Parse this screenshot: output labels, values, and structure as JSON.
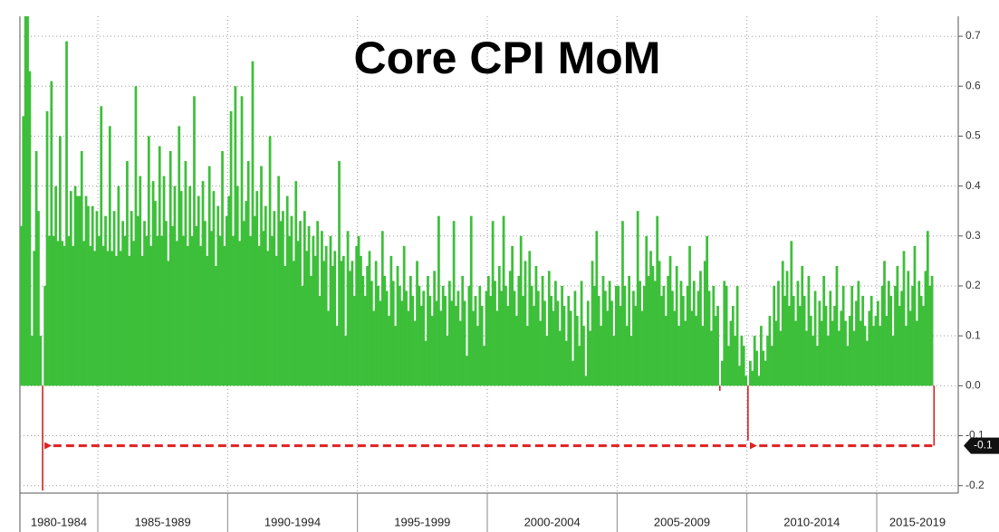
{
  "chart_data": {
    "type": "bar",
    "title": "Core CPI MoM",
    "color": "#3dbf3a",
    "negative_color": "#d42020",
    "annotation_color": "#e02020",
    "ylim": [
      -0.215,
      0.74
    ],
    "yticks": [
      0.7,
      0.6,
      0.5,
      0.4,
      0.3,
      0.2,
      0.1,
      {
        "value": 0,
        "label": "0.0"
      },
      -0.1,
      -0.2
    ],
    "xlim": [
      1982,
      2018.14
    ],
    "xticks": [
      1985,
      1990,
      1995,
      2000,
      2005,
      2010,
      2015
    ],
    "grid": true,
    "last_label": {
      "value": -0.12,
      "label": "-0.1"
    },
    "groups": [
      {
        "label": "1980-1984",
        "values": [
          0.32,
          0.54,
          0.74,
          0.74,
          0.63,
          0.1,
          0.27,
          0.47,
          0.35,
          0.1,
          -0.21,
          0.2,
          0.55,
          0.3,
          0.61,
          0.3,
          0.4,
          0.29,
          0.5,
          0.29,
          0.28,
          0.69,
          0.3,
          0.39,
          0.28,
          0.4,
          0.38,
          0.38,
          0.47,
          0.29,
          0.38,
          0.36,
          0.28,
          0.36,
          0.27,
          0.35
        ]
      },
      {
        "label": "1985-1989",
        "values": [
          0.3,
          0.56,
          0.28,
          0.34,
          0.27,
          0.52,
          0.27,
          0.35,
          0.26,
          0.4,
          0.27,
          0.33,
          0.3,
          0.45,
          0.26,
          0.35,
          0.29,
          0.6,
          0.34,
          0.42,
          0.26,
          0.33,
          0.3,
          0.5,
          0.28,
          0.41,
          0.37,
          0.3,
          0.48,
          0.3,
          0.42,
          0.33,
          0.25,
          0.47,
          0.32,
          0.4,
          0.29,
          0.52,
          0.39,
          0.3,
          0.45,
          0.28,
          0.4,
          0.3,
          0.58,
          0.32,
          0.38,
          0.28,
          0.41,
          0.33,
          0.26,
          0.44,
          0.31,
          0.39,
          0.24,
          0.36,
          0.3,
          0.47,
          0.28,
          0.34
        ]
      },
      {
        "label": "1990-1994",
        "values": [
          0.38,
          0.55,
          0.3,
          0.6,
          0.4,
          0.29,
          0.58,
          0.33,
          0.37,
          0.45,
          0.3,
          0.65,
          0.34,
          0.39,
          0.28,
          0.44,
          0.31,
          0.36,
          0.27,
          0.5,
          0.3,
          0.35,
          0.26,
          0.42,
          0.33,
          0.35,
          0.24,
          0.38,
          0.3,
          0.34,
          0.25,
          0.41,
          0.29,
          0.33,
          0.2,
          0.35,
          0.27,
          0.32,
          0.22,
          0.3,
          0.26,
          0.33,
          0.18,
          0.31,
          0.25,
          0.28,
          0.15,
          0.3,
          0.24,
          0.27,
          0.12,
          0.45,
          0.25,
          0.26,
          0.1,
          0.31,
          0.23,
          0.25,
          0.18,
          0.28
        ]
      },
      {
        "label": "1995-1999",
        "values": [
          0.3,
          0.26,
          0.22,
          0.18,
          0.24,
          0.27,
          0.21,
          0.15,
          0.25,
          0.2,
          0.17,
          0.31,
          0.22,
          0.19,
          0.14,
          0.26,
          0.21,
          0.12,
          0.24,
          0.2,
          0.17,
          0.28,
          0.19,
          0.15,
          0.22,
          0.18,
          0.13,
          0.25,
          0.2,
          0.16,
          0.19,
          0.09,
          0.22,
          0.18,
          0.14,
          0.23,
          0.17,
          0.34,
          0.15,
          0.2,
          0.18,
          0.1,
          0.21,
          0.17,
          0.33,
          0.16,
          0.19,
          0.13,
          0.22,
          0.17,
          0.06,
          0.2,
          0.34,
          0.15,
          0.18,
          0.12,
          0.2,
          0.16,
          0.08,
          0.19
        ]
      },
      {
        "label": "2000-2004",
        "values": [
          0.22,
          0.18,
          0.33,
          0.21,
          0.15,
          0.24,
          0.19,
          0.34,
          0.2,
          0.16,
          0.23,
          0.28,
          0.19,
          0.14,
          0.22,
          0.3,
          0.18,
          0.25,
          0.12,
          0.27,
          0.2,
          0.16,
          0.24,
          0.19,
          0.13,
          0.22,
          0.17,
          0.1,
          0.23,
          0.18,
          0.15,
          0.21,
          0.17,
          0.11,
          0.2,
          0.16,
          0.09,
          0.18,
          0.15,
          0.05,
          0.19,
          0.14,
          0.08,
          0.21,
          0.12,
          0.02,
          0.17,
          0.11,
          0.25,
          0.2,
          0.31,
          0.18,
          0.12,
          0.22,
          0.19,
          0.15,
          0.21,
          0.17,
          0.1,
          0.2
        ]
      },
      {
        "label": "2005-2009",
        "values": [
          0.2,
          0.16,
          0.33,
          0.2,
          0.12,
          0.22,
          0.1,
          0.19,
          0.16,
          0.35,
          0.21,
          0.15,
          0.2,
          0.3,
          0.22,
          0.27,
          0.24,
          0.21,
          0.34,
          0.25,
          0.18,
          0.2,
          0.14,
          0.22,
          0.26,
          0.19,
          0.15,
          0.24,
          0.12,
          0.21,
          0.18,
          0.13,
          0.2,
          0.28,
          0.15,
          0.21,
          0.14,
          0.19,
          0.23,
          0.12,
          0.25,
          0.3,
          0.19,
          0.11,
          0.2,
          0.14,
          0.16,
          -0.01,
          0.05,
          0.21,
          0.2,
          0.08,
          0.13,
          0.16,
          0.1,
          0.2,
          0.04,
          0.1,
          0.08,
          0.02
        ]
      },
      {
        "label": "2010-2014",
        "values": [
          -0.11,
          0.05,
          0.03,
          0.1,
          0.07,
          0.02,
          0.12,
          0.07,
          0.05,
          0.1,
          0.14,
          0.08,
          0.2,
          0.13,
          0.21,
          0.11,
          0.25,
          0.18,
          0.23,
          0.16,
          0.29,
          0.18,
          0.13,
          0.21,
          0.16,
          0.24,
          0.18,
          0.11,
          0.22,
          0.14,
          0.1,
          0.19,
          0.08,
          0.17,
          0.13,
          0.22,
          0.16,
          0.1,
          0.19,
          0.13,
          0.16,
          0.24,
          0.11,
          0.15,
          0.2,
          0.13,
          0.08,
          0.14,
          0.2,
          0.11,
          0.17,
          0.21,
          0.13,
          0.18,
          0.12,
          0.09,
          0.15,
          0.18,
          0.12,
          0.14
        ]
      },
      {
        "label": "2015-2019",
        "values": [
          0.17,
          0.12,
          0.2,
          0.25,
          0.14,
          0.21,
          0.18,
          0.1,
          0.2,
          0.24,
          0.16,
          0.19,
          0.27,
          0.12,
          0.23,
          0.15,
          0.2,
          0.28,
          0.13,
          0.21,
          0.18,
          0.16,
          0.23,
          0.31,
          0.2,
          0.22,
          -0.12
        ]
      }
    ]
  }
}
